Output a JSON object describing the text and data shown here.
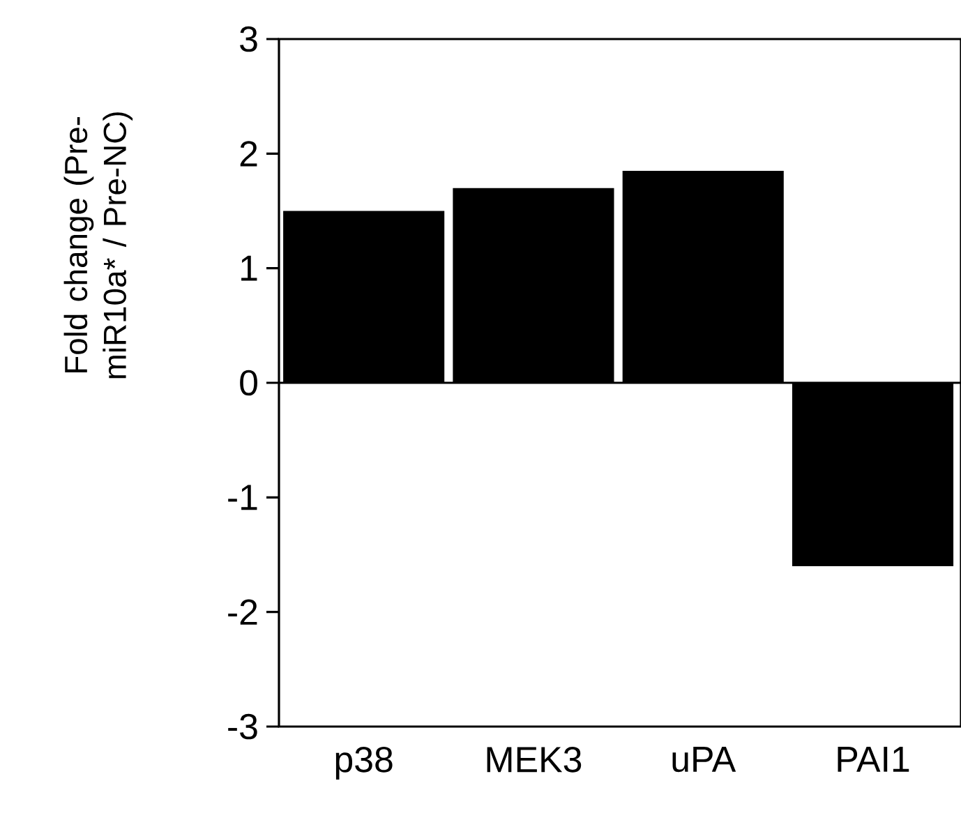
{
  "chart_data": {
    "type": "bar",
    "ylabel": "Fold change (Pre-miR10a* / Pre-NC)",
    "categories": [
      "p38",
      "MEK3",
      "uPA",
      "PAI1"
    ],
    "values": [
      1.5,
      1.7,
      1.85,
      -1.6
    ],
    "color": "#000000",
    "ylim": [
      -3,
      3
    ],
    "yticks": [
      -3,
      -2,
      -1,
      0,
      1,
      2,
      3
    ]
  }
}
